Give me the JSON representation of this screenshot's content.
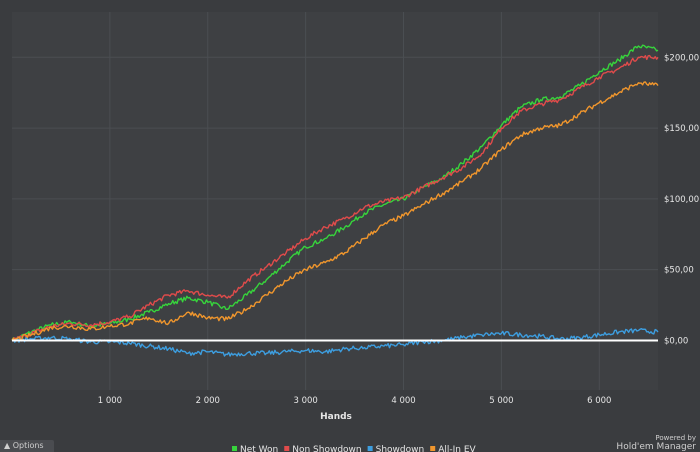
{
  "options_label": "Options",
  "options_icon": "caret-up-icon",
  "powered_by": "Powered by",
  "brand": "Hold'em Manager",
  "chart_data": {
    "type": "line",
    "xlabel": "Hands",
    "ylabel": "",
    "xlim": [
      0,
      6600
    ],
    "ylim": [
      -35,
      232
    ],
    "x_ticks": [
      1000,
      2000,
      3000,
      4000,
      5000,
      6000
    ],
    "x_tick_labels": [
      "1 000",
      "2 000",
      "3 000",
      "4 000",
      "5 000",
      "6 000"
    ],
    "y_ticks": [
      0,
      50,
      100,
      150,
      200
    ],
    "y_tick_labels": [
      "$0,00",
      "$50,00",
      "$100,00",
      "$150,00",
      "$200,00"
    ],
    "grid": true,
    "legend_position": "bottom",
    "zero_line_color": "#ffffff",
    "series": [
      {
        "name": "Net Won",
        "color": "#37d43c",
        "x": [
          0,
          200,
          400,
          600,
          800,
          1000,
          1200,
          1400,
          1600,
          1800,
          2000,
          2200,
          2400,
          2600,
          2800,
          3000,
          3200,
          3400,
          3600,
          3800,
          4000,
          4200,
          4400,
          4600,
          4800,
          5000,
          5200,
          5400,
          5600,
          5800,
          6000,
          6200,
          6400,
          6600
        ],
        "values": [
          0,
          6,
          11,
          13,
          10,
          12,
          15,
          20,
          26,
          30,
          27,
          22,
          32,
          43,
          55,
          66,
          72,
          80,
          90,
          96,
          100,
          108,
          115,
          125,
          137,
          152,
          165,
          170,
          172,
          180,
          190,
          198,
          208,
          205
        ]
      },
      {
        "name": "Non Showdown",
        "color": "#e04b4b",
        "x": [
          0,
          200,
          400,
          600,
          800,
          1000,
          1200,
          1400,
          1600,
          1800,
          2000,
          2200,
          2400,
          2600,
          2800,
          3000,
          3200,
          3400,
          3600,
          3800,
          4000,
          4200,
          4400,
          4600,
          4800,
          5000,
          5200,
          5400,
          5600,
          5800,
          6000,
          6200,
          6400,
          6600
        ],
        "values": [
          0,
          5,
          10,
          12,
          11,
          13,
          17,
          25,
          32,
          35,
          32,
          30,
          42,
          52,
          62,
          72,
          80,
          86,
          94,
          98,
          101,
          108,
          115,
          122,
          132,
          150,
          162,
          167,
          170,
          178,
          186,
          192,
          200,
          200
        ]
      },
      {
        "name": "Showdown",
        "color": "#3d9ee0",
        "x": [
          0,
          200,
          400,
          600,
          800,
          1000,
          1200,
          1400,
          1600,
          1800,
          2000,
          2200,
          2400,
          2600,
          2800,
          3000,
          3200,
          3400,
          3600,
          3800,
          4000,
          4200,
          4400,
          4600,
          4800,
          5000,
          5200,
          5400,
          5600,
          5800,
          6000,
          6200,
          6400,
          6600
        ],
        "values": [
          0,
          1,
          2,
          1,
          -1,
          -1,
          -2,
          -4,
          -6,
          -9,
          -8,
          -10,
          -9,
          -9,
          -8,
          -7,
          -8,
          -6,
          -5,
          -4,
          -3,
          -1,
          0,
          2,
          4,
          5,
          4,
          3,
          1,
          2,
          4,
          6,
          7,
          6
        ]
      },
      {
        "name": "All-In EV",
        "color": "#f0962d",
        "x": [
          0,
          200,
          400,
          600,
          800,
          1000,
          1200,
          1400,
          1600,
          1800,
          2000,
          2200,
          2400,
          2600,
          2800,
          3000,
          3200,
          3400,
          3600,
          3800,
          4000,
          4200,
          4400,
          4600,
          4800,
          5000,
          5200,
          5400,
          5600,
          5800,
          6000,
          6200,
          6400,
          6600
        ],
        "values": [
          0,
          4,
          9,
          10,
          8,
          10,
          12,
          16,
          12,
          20,
          16,
          15,
          22,
          32,
          42,
          50,
          55,
          62,
          72,
          82,
          88,
          96,
          104,
          112,
          122,
          135,
          145,
          150,
          152,
          160,
          168,
          175,
          182,
          180
        ]
      }
    ]
  }
}
